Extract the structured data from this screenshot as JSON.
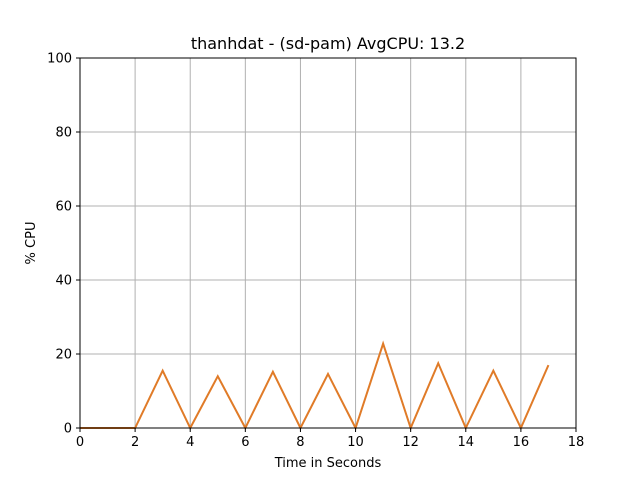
{
  "chart_data": {
    "type": "line",
    "title": "thanhdat - (sd-pam) AvgCPU: 13.2",
    "xlabel": "Time in Seconds",
    "ylabel": "% CPU",
    "xlim": [
      0,
      18
    ],
    "ylim": [
      0,
      100
    ],
    "xticks": [
      0,
      2,
      4,
      6,
      8,
      10,
      12,
      14,
      16,
      18
    ],
    "yticks": [
      0,
      20,
      40,
      60,
      80,
      100
    ],
    "grid": true,
    "colors": {
      "line": "#e07b28",
      "grid": "#b0b0b0",
      "axes": "#000000"
    },
    "series": [
      {
        "x": [
          0,
          1,
          2,
          3,
          4,
          5,
          6,
          7,
          8,
          9,
          10,
          11,
          12,
          13,
          14,
          15,
          16,
          17
        ],
        "values": [
          0,
          0,
          0,
          15.5,
          0,
          14.0,
          0,
          15.2,
          0,
          14.6,
          0,
          22.8,
          0,
          17.5,
          0,
          15.5,
          0,
          17.0
        ]
      }
    ]
  }
}
